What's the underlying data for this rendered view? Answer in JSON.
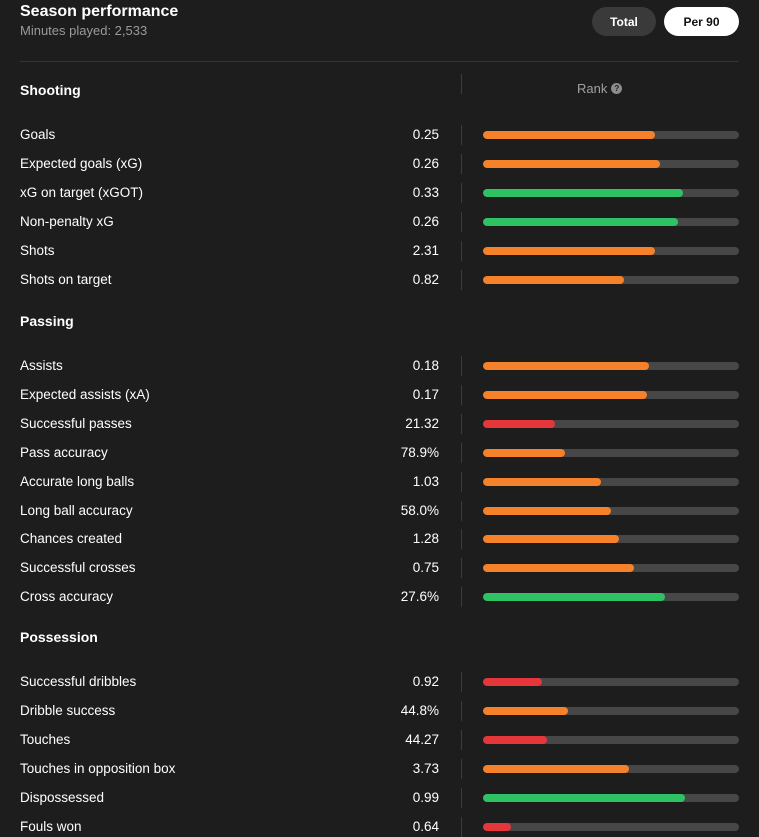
{
  "header": {
    "title": "Season performance",
    "subtitle": "Minutes played: 2,533",
    "toggle_total": "Total",
    "toggle_per90": "Per 90",
    "selected_toggle": "Per 90"
  },
  "rank_label": "Rank",
  "colors": {
    "orange": "#f5822a",
    "green": "#2ec264",
    "red": "#e5363c",
    "track": "#474747",
    "background": "#1d1d1d"
  },
  "sections": [
    {
      "title": "Shooting",
      "show_rank": true,
      "stats": [
        {
          "label": "Goals",
          "value": "0.25",
          "rank": 0.67,
          "color": "orange"
        },
        {
          "label": "Expected goals (xG)",
          "value": "0.26",
          "rank": 0.69,
          "color": "orange"
        },
        {
          "label": "xG on target (xGOT)",
          "value": "0.33",
          "rank": 0.78,
          "color": "green"
        },
        {
          "label": "Non-penalty xG",
          "value": "0.26",
          "rank": 0.76,
          "color": "green"
        },
        {
          "label": "Shots",
          "value": "2.31",
          "rank": 0.67,
          "color": "orange"
        },
        {
          "label": "Shots on target",
          "value": "0.82",
          "rank": 0.55,
          "color": "orange"
        }
      ]
    },
    {
      "title": "Passing",
      "show_rank": false,
      "stats": [
        {
          "label": "Assists",
          "value": "0.18",
          "rank": 0.65,
          "color": "orange"
        },
        {
          "label": "Expected assists (xA)",
          "value": "0.17",
          "rank": 0.64,
          "color": "orange"
        },
        {
          "label": "Successful passes",
          "value": "21.32",
          "rank": 0.28,
          "color": "red"
        },
        {
          "label": "Pass accuracy",
          "value": "78.9%",
          "rank": 0.32,
          "color": "orange"
        },
        {
          "label": "Accurate long balls",
          "value": "1.03",
          "rank": 0.46,
          "color": "orange"
        },
        {
          "label": "Long ball accuracy",
          "value": "58.0%",
          "rank": 0.5,
          "color": "orange"
        },
        {
          "label": "Chances created",
          "value": "1.28",
          "rank": 0.53,
          "color": "orange"
        },
        {
          "label": "Successful crosses",
          "value": "0.75",
          "rank": 0.59,
          "color": "orange"
        },
        {
          "label": "Cross accuracy",
          "value": "27.6%",
          "rank": 0.71,
          "color": "green"
        }
      ]
    },
    {
      "title": "Possession",
      "show_rank": false,
      "stats": [
        {
          "label": "Successful dribbles",
          "value": "0.92",
          "rank": 0.23,
          "color": "red"
        },
        {
          "label": "Dribble success",
          "value": "44.8%",
          "rank": 0.33,
          "color": "orange"
        },
        {
          "label": "Touches",
          "value": "44.27",
          "rank": 0.25,
          "color": "red"
        },
        {
          "label": "Touches in opposition box",
          "value": "3.73",
          "rank": 0.57,
          "color": "orange"
        },
        {
          "label": "Dispossessed",
          "value": "0.99",
          "rank": 0.79,
          "color": "green"
        },
        {
          "label": "Fouls won",
          "value": "0.64",
          "rank": 0.11,
          "color": "red"
        }
      ]
    }
  ]
}
